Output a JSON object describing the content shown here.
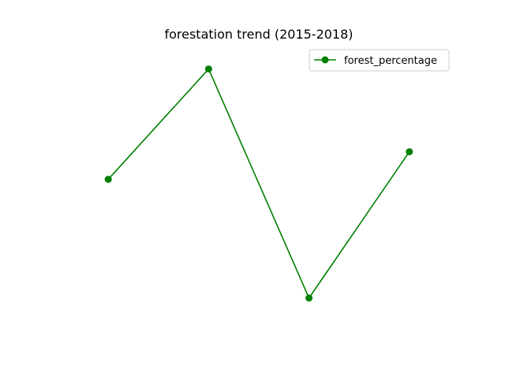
{
  "chart_data": {
    "type": "line",
    "title": "forestation trend (2015-2018)",
    "x": [
      2015,
      2016,
      2017,
      2018
    ],
    "series": [
      {
        "name": "forest_percentage",
        "values": [
          31.2,
          33.8,
          28.4,
          31.85
        ],
        "color": "#008000",
        "marker": "circle"
      }
    ],
    "xlim": [
      2014.55,
      2018.45
    ],
    "ylim": [
      27.5,
      34.35
    ],
    "axes_visible": false,
    "grid": false,
    "legend": {
      "placement": "top-right"
    }
  }
}
